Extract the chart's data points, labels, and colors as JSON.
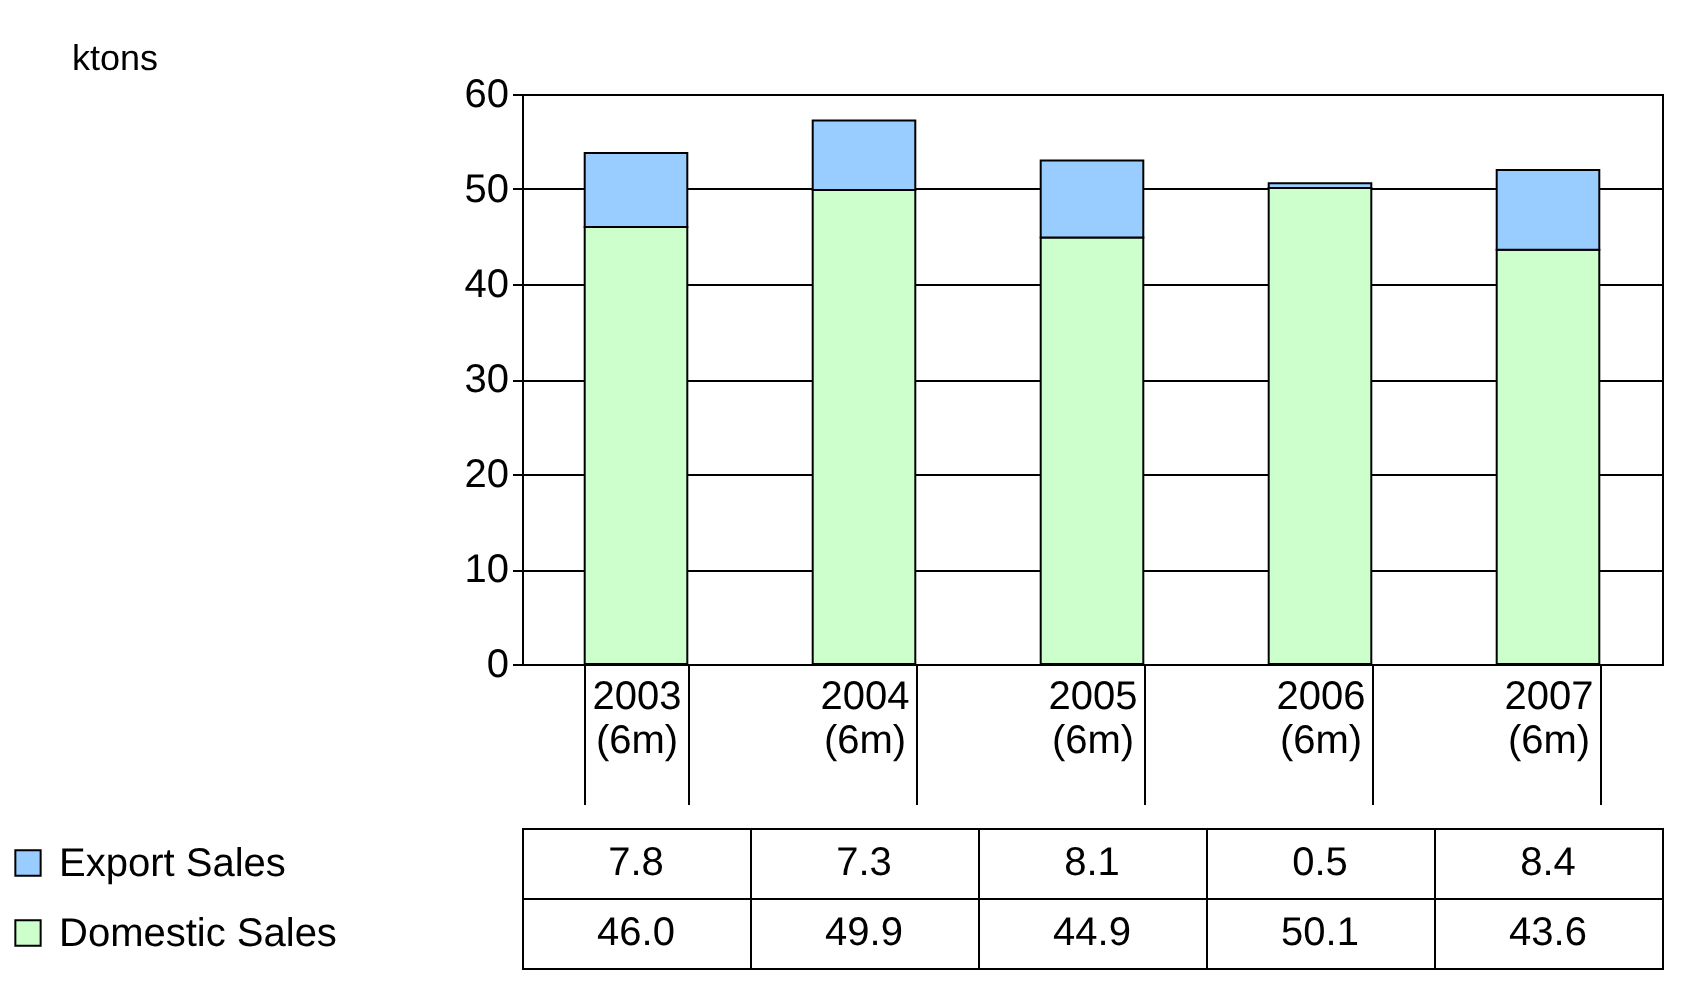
{
  "chart_data": {
    "type": "bar",
    "stacked": true,
    "annotations": [
      "ktons"
    ],
    "categories": [
      "2003 (6m)",
      "2004 (6m)",
      "2005 (6m)",
      "2006 (6m)",
      "2007 (6m)"
    ],
    "series": [
      {
        "name": "Domestic Sales",
        "color": "#ccffcc",
        "values": [
          46.0,
          49.9,
          44.9,
          50.1,
          43.6
        ],
        "value_labels": [
          "46.0",
          "49.9",
          "44.9",
          "50.1",
          "43.6"
        ]
      },
      {
        "name": "Export Sales",
        "color": "#99ccff",
        "values": [
          7.8,
          7.3,
          8.1,
          0.5,
          8.4
        ],
        "value_labels": [
          "7.8",
          "7.3",
          "8.1",
          "0.5",
          "8.4"
        ]
      }
    ],
    "ylim": [
      0,
      60
    ],
    "yticks": [
      0,
      10,
      20,
      30,
      40,
      50,
      60
    ],
    "grid": "y",
    "legend": "bottom"
  }
}
